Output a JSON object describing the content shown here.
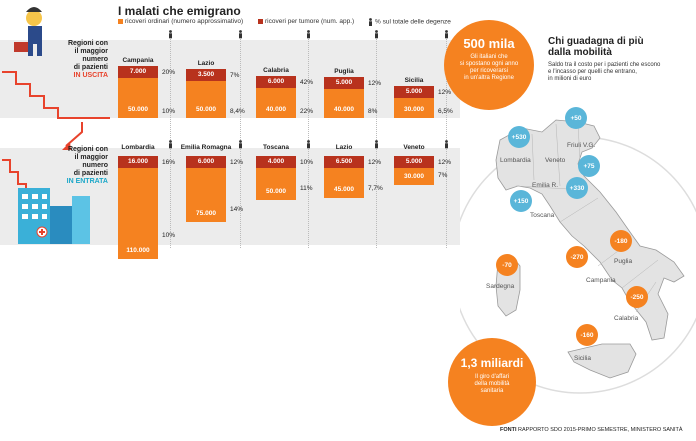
{
  "title": "I malati che emigrano",
  "legend": {
    "ordinari": "ricoveri ordinari (numero approssimativo)",
    "tumore": "ricoveri per tumore (num. app.)",
    "pct": "% sul totale delle degenze"
  },
  "colors": {
    "ordinari": "#f58220",
    "tumore": "#b8321d",
    "saldo_pos": "#5ab6d9",
    "saldo_neg": "#f58220"
  },
  "side": {
    "uscita_lines": [
      "Regioni con",
      "il maggior",
      "numero",
      "di pazienti"
    ],
    "uscita_hl": "IN USCITA",
    "entrata_lines": [
      "Regioni con",
      "il maggior",
      "numero",
      "di pazienti"
    ],
    "entrata_hl": "IN ENTRATA"
  },
  "chart_data": [
    {
      "type": "bar",
      "group": "uscita",
      "title": "Regioni con il maggior numero di pazienti IN USCITA",
      "categories": [
        "Campania",
        "Lazio",
        "Calabria",
        "Puglia",
        "Sicilia"
      ],
      "series": [
        {
          "name": "ricoveri ordinari",
          "values": [
            50000,
            50000,
            40000,
            40000,
            30000
          ],
          "labels": [
            "50.000",
            "50.000",
            "40.000",
            "40.000",
            "30.000"
          ]
        },
        {
          "name": "ricoveri per tumore",
          "values": [
            7000,
            3500,
            6000,
            5000,
            5000
          ],
          "labels": [
            "7.000",
            "3.500",
            "6.000",
            "5.000",
            "5.000"
          ]
        }
      ],
      "pct_tumore": [
        "20%",
        "7%",
        "42%",
        "12%",
        "12%"
      ],
      "pct_ordinari": [
        "10%",
        "8,4%",
        "22%",
        "8%",
        "6,5%"
      ]
    },
    {
      "type": "bar",
      "group": "entrata",
      "title": "Regioni con il maggior numero di pazienti IN ENTRATA",
      "categories": [
        "Lombardia",
        "Emilia Romagna",
        "Toscana",
        "Lazio",
        "Veneto"
      ],
      "series": [
        {
          "name": "ricoveri ordinari",
          "values": [
            110000,
            75000,
            50000,
            45000,
            30000
          ],
          "labels": [
            "110.000",
            "75.000",
            "50.000",
            "45.000",
            "30.000"
          ]
        },
        {
          "name": "ricoveri per tumore",
          "values": [
            16000,
            6000,
            4000,
            6500,
            5000
          ],
          "labels": [
            "16.000",
            "6.000",
            "4.000",
            "6.500",
            "5.000"
          ]
        }
      ],
      "pct_tumore": [
        "16%",
        "12%",
        "10%",
        "12%",
        "12%"
      ],
      "pct_ordinari": [
        "10%",
        "14%",
        "11%",
        "7,7%",
        "7%"
      ]
    }
  ],
  "bubble1": {
    "value": "500 mila",
    "lines": [
      "Gli italiani che",
      "si spostano ogni anno",
      "per ricoverarsi",
      "in un'altra Regione"
    ]
  },
  "bubble2": {
    "value": "1,3 miliardi",
    "lines": [
      "Il giro d'affari",
      "della mobilità",
      "sanitaria"
    ]
  },
  "map": {
    "title_lines": [
      "Chi guadagna di più",
      "dalla mobilità"
    ],
    "subtitle_lines": [
      "Saldo tra il costo per i pazienti che escono",
      "e l'incasso per quelli che entrano,",
      "in milioni di euro"
    ],
    "markers": [
      {
        "label": "+530",
        "kind": "pos"
      },
      {
        "label": "+50",
        "kind": "pos"
      },
      {
        "label": "+75",
        "kind": "pos"
      },
      {
        "label": "+330",
        "kind": "pos"
      },
      {
        "label": "+150",
        "kind": "pos"
      },
      {
        "label": "-180",
        "kind": "neg"
      },
      {
        "label": "-270",
        "kind": "neg"
      },
      {
        "label": "-70",
        "kind": "neg"
      },
      {
        "label": "-250",
        "kind": "neg"
      },
      {
        "label": "-160",
        "kind": "neg"
      }
    ],
    "region_labels": [
      "Lombardia",
      "Veneto",
      "Friuli V.G.",
      "Emilia R.",
      "Toscana",
      "Puglia",
      "Campania",
      "Sardegna",
      "Calabria",
      "Sicilia"
    ]
  },
  "source": {
    "bold": "FONTI",
    "text": "RAPPORTO SDO 2015-PRIMO SEMESTRE, MINISTERO SANITÀ"
  }
}
